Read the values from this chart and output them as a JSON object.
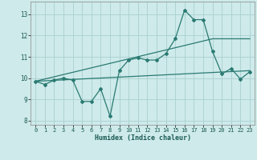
{
  "xlabel": "Humidex (Indice chaleur)",
  "xlim": [
    -0.5,
    23.5
  ],
  "ylim": [
    7.8,
    13.6
  ],
  "yticks": [
    8,
    9,
    10,
    11,
    12,
    13
  ],
  "xticks": [
    0,
    1,
    2,
    3,
    4,
    5,
    6,
    7,
    8,
    9,
    10,
    11,
    12,
    13,
    14,
    15,
    16,
    17,
    18,
    19,
    20,
    21,
    22,
    23
  ],
  "background_color": "#ceeaea",
  "grid_color": "#aacfcf",
  "line_color": "#2a7a72",
  "line1_x": [
    0,
    1,
    2,
    3,
    4,
    5,
    6,
    7,
    8,
    9,
    10,
    11,
    12,
    13,
    14,
    15,
    16,
    17,
    18,
    19,
    20,
    21,
    22,
    23
  ],
  "line1_y": [
    9.85,
    9.7,
    9.9,
    10.0,
    9.9,
    8.9,
    8.9,
    9.5,
    8.2,
    10.35,
    10.85,
    10.95,
    10.85,
    10.85,
    11.15,
    11.85,
    13.2,
    12.75,
    12.75,
    11.25,
    10.2,
    10.45,
    9.95,
    10.3
  ],
  "line2_x": [
    0,
    23
  ],
  "line2_y": [
    9.85,
    10.35
  ],
  "line3_x": [
    0,
    19,
    23
  ],
  "line3_y": [
    9.85,
    11.85,
    11.85
  ]
}
